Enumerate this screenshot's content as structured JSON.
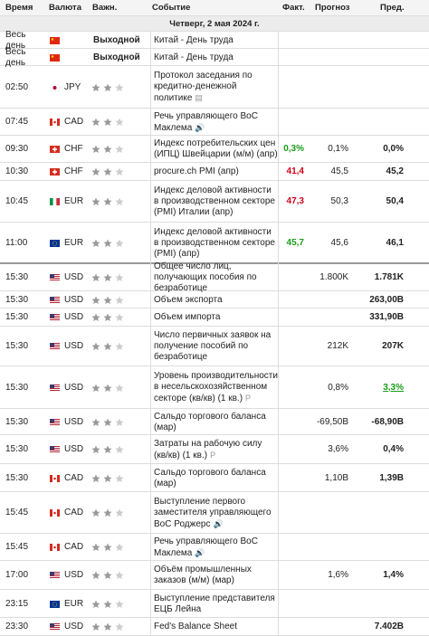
{
  "header": {
    "columns": [
      "Время",
      "Валюта",
      "Важн.",
      "Событие",
      "Факт.",
      "Прогноз",
      "Пред."
    ]
  },
  "date": "Четверг, 2 мая 2024 г.",
  "rows": [
    {
      "time": "Весь день",
      "status": "Выходной",
      "event": "Китай - День труда"
    },
    {
      "time": "Весь день",
      "status": "Выходной",
      "event": "Китай - День труда"
    },
    {
      "time": "02:50",
      "currency": "JPY",
      "event": "Протокол заседания по кредитно-денежной политике"
    },
    {
      "time": "07:45",
      "currency": "CAD",
      "event": "Речь управляющего BoC Маклема"
    },
    {
      "time": "09:30",
      "currency": "CHF",
      "event": "Индекс потребительских цен (ИПЦ) Швейцарии (м/м) (апр)",
      "actual": "0,3%",
      "actual_color": "#1a9b1a",
      "forecast": "0,1%",
      "previous": "0,0%"
    },
    {
      "time": "10:30",
      "currency": "CHF",
      "event": "procure.ch PMI (апр)",
      "actual": "41,4",
      "actual_color": "#d0021b",
      "forecast": "45,5",
      "previous": "45,2"
    },
    {
      "time": "10:45",
      "currency": "EUR",
      "event": "Индекс деловой активности в производственном секторе (PMI) Италии (апр)",
      "actual": "47,3",
      "actual_color": "#d0021b",
      "forecast": "50,3",
      "previous": "50,4"
    },
    {
      "time": "11:00",
      "currency": "EUR",
      "event": "Индекс деловой активности в производственном секторе (PMI) (апр)",
      "actual": "45,7",
      "actual_color": "#1a9b1a",
      "forecast": "45,6",
      "previous": "46,1"
    },
    {
      "time": "15:30",
      "currency": "USD",
      "event": "Общее число лиц, получающих пособия по безработице",
      "forecast": "1.800K",
      "previous": "1.781K"
    },
    {
      "time": "15:30",
      "currency": "USD",
      "event": "Объем экспорта",
      "previous": "263,00B"
    },
    {
      "time": "15:30",
      "currency": "USD",
      "event": "Объем импорта",
      "previous": "331,90B"
    },
    {
      "time": "15:30",
      "currency": "USD",
      "event": "Число первичных заявок на получение пособий по безработице",
      "forecast": "212K",
      "previous": "207K"
    },
    {
      "time": "15:30",
      "currency": "USD",
      "event": "Уровень производительности в несельскохозяйственном секторе (кв/кв) (1 кв.)",
      "forecast": "0,8%",
      "previous": "3,3%",
      "previous_color": "#1a9b1a"
    },
    {
      "time": "15:30",
      "currency": "USD",
      "event": "Сальдо торгового баланса (мар)",
      "forecast": "-69,50B",
      "previous": "-68,90B"
    },
    {
      "time": "15:30",
      "currency": "USD",
      "event": "Затраты на рабочую силу (кв/кв) (1 кв.)",
      "forecast": "3,6%",
      "previous": "0,4%"
    },
    {
      "time": "15:30",
      "currency": "CAD",
      "event": "Сальдо торгового баланса (мар)",
      "forecast": "1,10B",
      "previous": "1,39B"
    },
    {
      "time": "15:45",
      "currency": "CAD",
      "event": "Выступление первого заместителя управляющего BoC Роджерс"
    },
    {
      "time": "15:45",
      "currency": "CAD",
      "event": "Речь управляющего BoC Маклема"
    },
    {
      "time": "17:00",
      "currency": "USD",
      "event": "Объём промышленных заказов (м/м) (мар)",
      "forecast": "1,6%",
      "previous": "1,4%"
    },
    {
      "time": "23:15",
      "currency": "EUR",
      "event": "Выступление представителя ЕЦБ Лейна"
    },
    {
      "time": "23:30",
      "currency": "USD",
      "event": "Fed's Balance Sheet",
      "previous": "7.402B"
    }
  ]
}
